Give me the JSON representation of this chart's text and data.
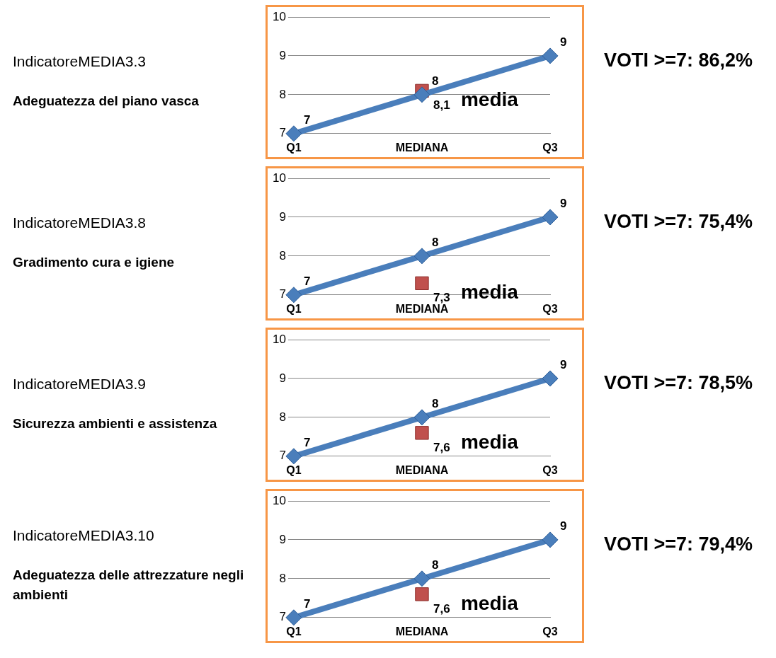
{
  "chart_data": [
    {
      "type": "line",
      "categories": [
        "Q1",
        "MEDIANA",
        "Q3"
      ],
      "ylim": [
        7,
        10
      ],
      "yticks": [
        7,
        8,
        9,
        10
      ],
      "grid": "y",
      "legend": false,
      "annotations": [
        "IndicatoreMEDIA3.3",
        "Adeguatezza del piano vasca",
        {
          "text": "media",
          "x": "MEDIANA",
          "y": 8.1
        },
        "VOTI >=7: 86,2%"
      ],
      "series": [
        {
          "type": "line",
          "color": "#4a7ebb",
          "values": [
            7,
            8,
            9
          ],
          "marker": "diamond",
          "value_labels": [
            "7",
            "8",
            "9"
          ]
        },
        {
          "type": "scatter",
          "color": "#c0504d",
          "x": [
            "MEDIANA"
          ],
          "values": [
            8.1
          ],
          "marker": "square",
          "value_labels": [
            "8,1"
          ]
        }
      ]
    },
    {
      "type": "line",
      "categories": [
        "Q1",
        "MEDIANA",
        "Q3"
      ],
      "ylim": [
        7,
        10
      ],
      "yticks": [
        7,
        8,
        9,
        10
      ],
      "grid": "y",
      "legend": false,
      "annotations": [
        "IndicatoreMEDIA3.8",
        "Gradimento cura e igiene",
        {
          "text": "media",
          "x": "MEDIANA",
          "y": 7.3
        },
        "VOTI >=7: 75,4%"
      ],
      "series": [
        {
          "type": "line",
          "color": "#4a7ebb",
          "values": [
            7,
            8,
            9
          ],
          "marker": "diamond",
          "value_labels": [
            "7",
            "8",
            "9"
          ]
        },
        {
          "type": "scatter",
          "color": "#c0504d",
          "x": [
            "MEDIANA"
          ],
          "values": [
            7.3
          ],
          "marker": "square",
          "value_labels": [
            "7,3"
          ]
        }
      ]
    },
    {
      "type": "line",
      "categories": [
        "Q1",
        "MEDIANA",
        "Q3"
      ],
      "ylim": [
        7,
        10
      ],
      "yticks": [
        7,
        8,
        9,
        10
      ],
      "grid": "y",
      "legend": false,
      "annotations": [
        "IndicatoreMEDIA3.9",
        "Sicurezza ambienti e assistenza",
        {
          "text": "media",
          "x": "MEDIANA",
          "y": 7.6
        },
        "VOTI >=7: 78,5%"
      ],
      "series": [
        {
          "type": "line",
          "color": "#4a7ebb",
          "values": [
            7,
            8,
            9
          ],
          "marker": "diamond",
          "value_labels": [
            "7",
            "8",
            "9"
          ]
        },
        {
          "type": "scatter",
          "color": "#c0504d",
          "x": [
            "MEDIANA"
          ],
          "values": [
            7.6
          ],
          "marker": "square",
          "value_labels": [
            "7,6"
          ]
        }
      ]
    },
    {
      "type": "line",
      "categories": [
        "Q1",
        "MEDIANA",
        "Q3"
      ],
      "ylim": [
        7,
        10
      ],
      "yticks": [
        7,
        8,
        9,
        10
      ],
      "grid": "y",
      "legend": false,
      "annotations": [
        "IndicatoreMEDIA3.10",
        "Adeguatezza delle attrezzature negli ambienti",
        {
          "text": "media",
          "x": "MEDIANA",
          "y": 7.6
        },
        "VOTI >=7: 79,4%"
      ],
      "series": [
        {
          "type": "line",
          "color": "#4a7ebb",
          "values": [
            7,
            8,
            9
          ],
          "marker": "diamond",
          "value_labels": [
            "7",
            "8",
            "9"
          ]
        },
        {
          "type": "scatter",
          "color": "#c0504d",
          "x": [
            "MEDIANA"
          ],
          "values": [
            7.6
          ],
          "marker": "square",
          "value_labels": [
            "7,6"
          ]
        }
      ]
    }
  ]
}
